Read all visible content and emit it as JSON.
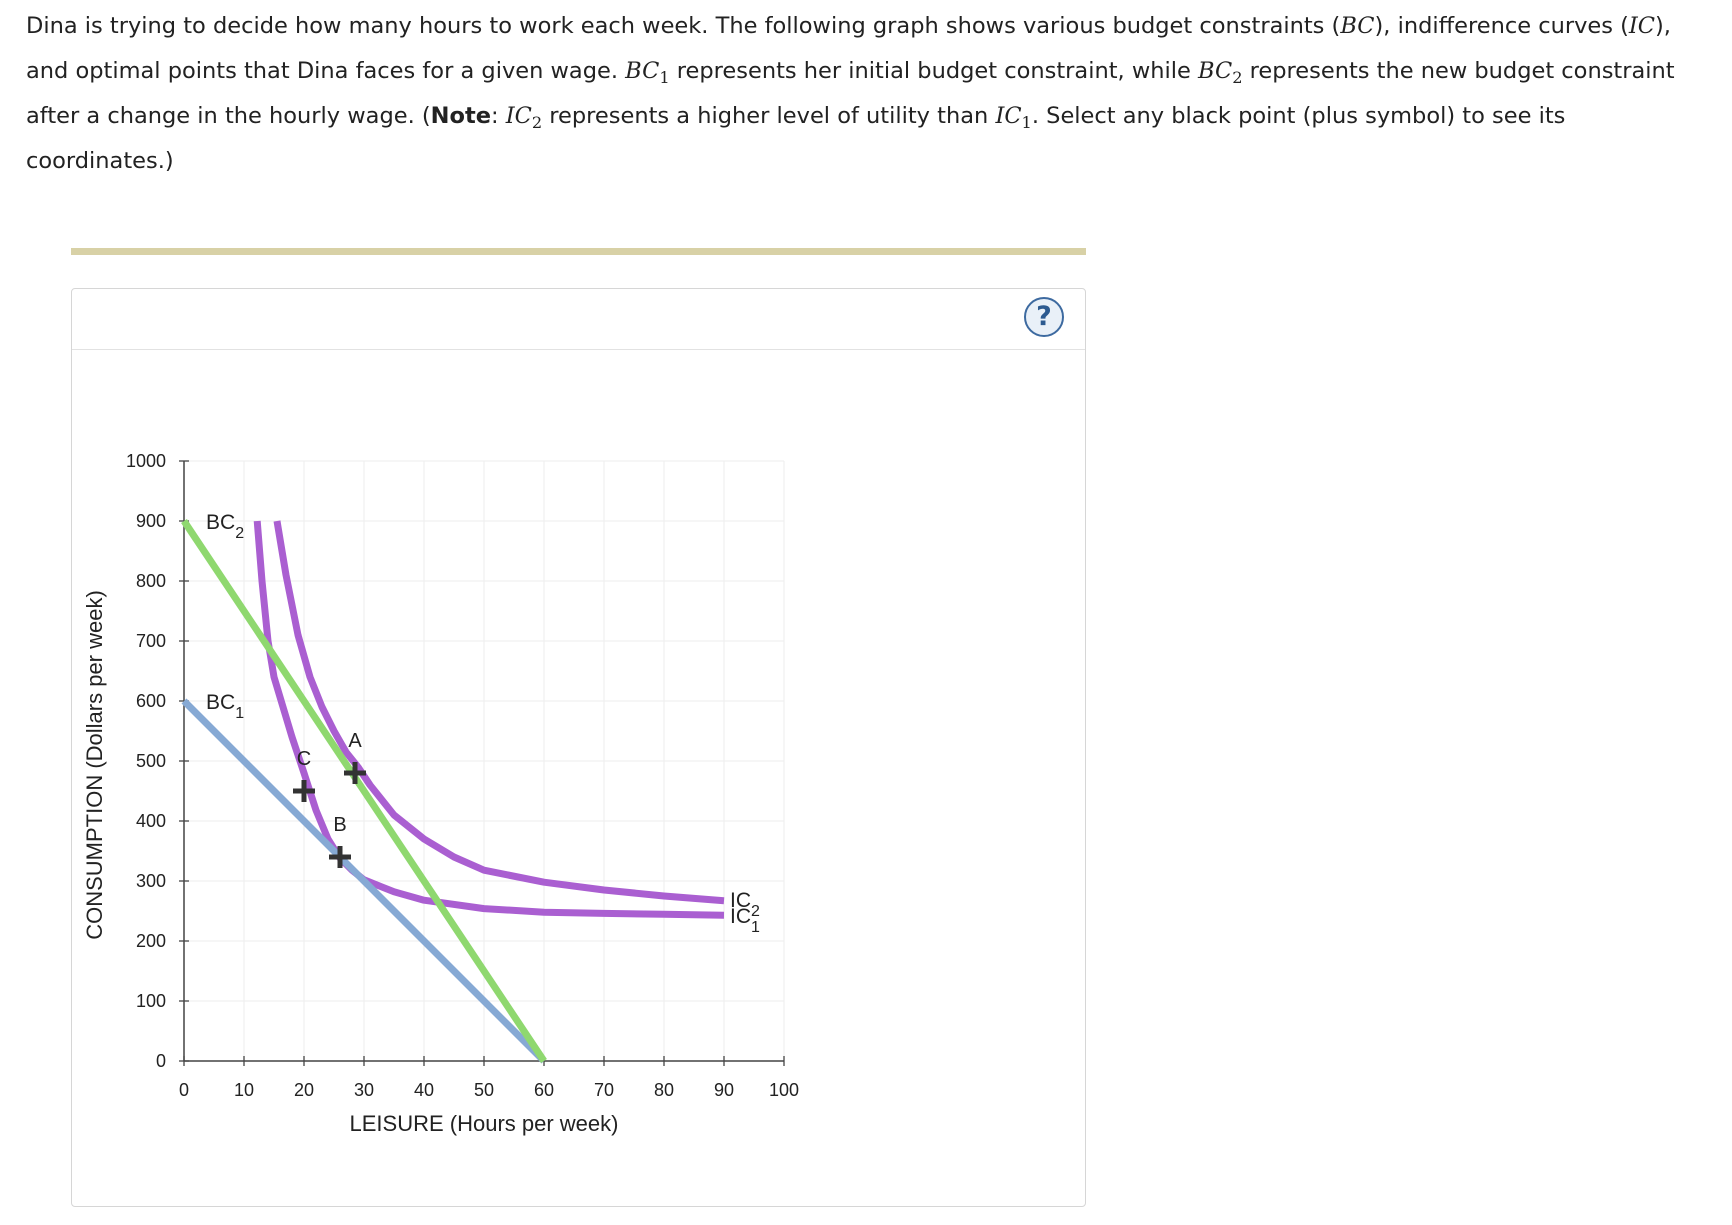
{
  "question": {
    "p1": "Dina is trying to decide how many hours to work each week. The following graph shows various budget constraints (",
    "m_bc": "BC",
    "p2": "), indifference curves (",
    "m_ic": "IC",
    "p3": "), and optimal points that Dina faces for a given wage. ",
    "m_bc1": "BC",
    "m_bc1_sub": "1",
    "p4": " represents her initial budget constraint, while ",
    "m_bc2": "BC",
    "m_bc2_sub": "2",
    "p5": " represents the new budget constraint after a change in the hourly wage. (",
    "note_bold": "Note",
    "p6": ": ",
    "m_ic2": "IC",
    "m_ic2_sub": "2",
    "p7": " represents a higher level of utility than ",
    "m_ic1": "IC",
    "m_ic1_sub": "1",
    "p8": ". Select any black point (plus symbol) to see its coordinates.)"
  },
  "help_button": {
    "label": "?"
  },
  "colors": {
    "bc1": "#86a9d4",
    "bc2": "#8fd86f",
    "ic": "#aa5fd1",
    "point": "#333333",
    "grid": "#eeeeee",
    "divider": "#d8d1a6"
  },
  "chart_data": {
    "type": "line",
    "xlabel": "LEISURE (Hours per week)",
    "ylabel": "CONSUMPTION (Dollars per week)",
    "xlim": [
      0,
      100
    ],
    "ylim": [
      0,
      1000
    ],
    "xticks": [
      0,
      10,
      20,
      30,
      40,
      50,
      60,
      70,
      80,
      90,
      100
    ],
    "yticks": [
      0,
      100,
      200,
      300,
      400,
      500,
      600,
      700,
      800,
      900,
      1000
    ],
    "grid": true,
    "series": [
      {
        "id": "bc1",
        "name": "BC",
        "sub": "1",
        "kind": "budget",
        "points": [
          [
            0,
            600
          ],
          [
            60,
            0
          ]
        ]
      },
      {
        "id": "bc2",
        "name": "BC",
        "sub": "2",
        "kind": "budget",
        "points": [
          [
            0,
            900
          ],
          [
            60,
            0
          ]
        ]
      },
      {
        "id": "ic1",
        "name": "IC",
        "sub": "1",
        "kind": "indifference",
        "points": [
          [
            12.2,
            900
          ],
          [
            13,
            800
          ],
          [
            14,
            700
          ],
          [
            15,
            640
          ],
          [
            16.5,
            590
          ],
          [
            18,
            540
          ],
          [
            20,
            480
          ],
          [
            22,
            418
          ],
          [
            24,
            370
          ],
          [
            26,
            338
          ],
          [
            28,
            318
          ],
          [
            30,
            302
          ],
          [
            35,
            282
          ],
          [
            40,
            268
          ],
          [
            50,
            254
          ],
          [
            60,
            248
          ],
          [
            70,
            246
          ],
          [
            80,
            244.5
          ],
          [
            90,
            243
          ]
        ]
      },
      {
        "id": "ic2",
        "name": "IC",
        "sub": "2",
        "kind": "indifference",
        "points": [
          [
            15.5,
            900
          ],
          [
            17,
            810
          ],
          [
            19,
            710
          ],
          [
            21,
            640
          ],
          [
            23,
            590
          ],
          [
            25,
            550
          ],
          [
            27,
            515
          ],
          [
            29,
            490
          ],
          [
            31,
            460
          ],
          [
            35,
            410
          ],
          [
            40,
            370
          ],
          [
            45,
            340
          ],
          [
            50,
            318
          ],
          [
            60,
            298
          ],
          [
            70,
            285
          ],
          [
            80,
            275
          ],
          [
            90,
            267
          ]
        ]
      }
    ],
    "points": [
      {
        "label": "A",
        "x": 28.5,
        "y": 480
      },
      {
        "label": "B",
        "x": 26,
        "y": 340
      },
      {
        "label": "C",
        "x": 20,
        "y": 450
      }
    ]
  }
}
